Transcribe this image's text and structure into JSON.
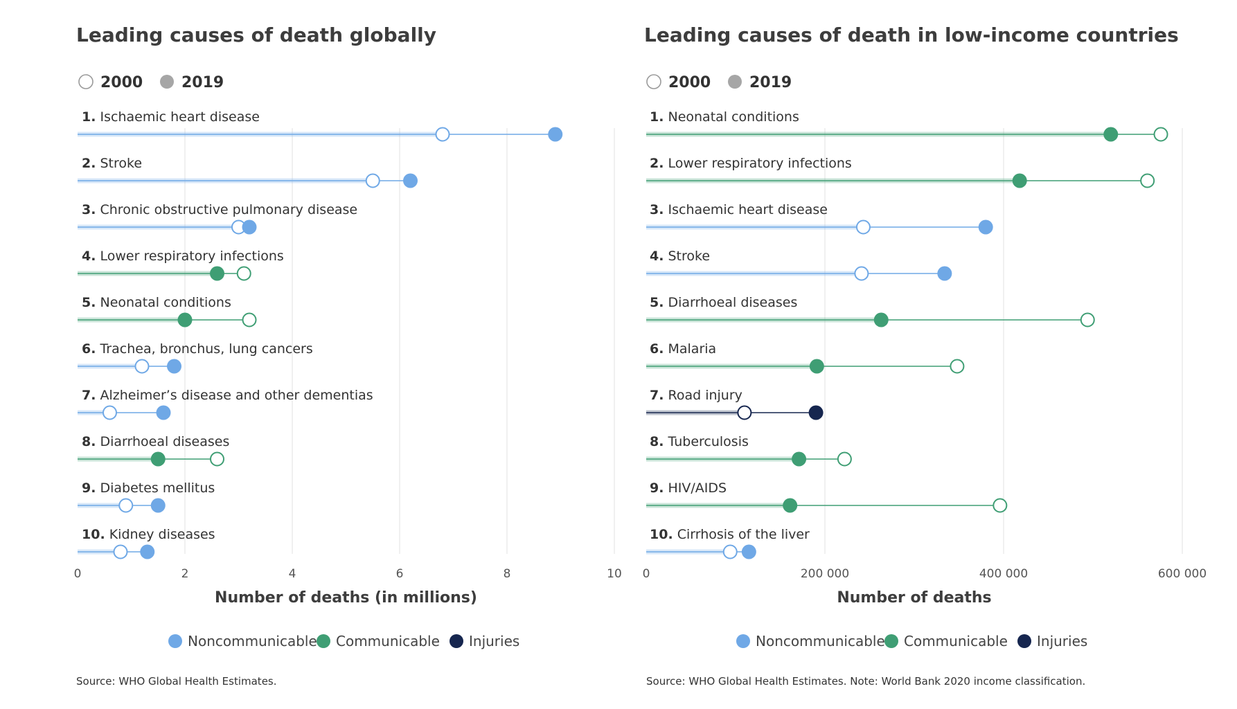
{
  "colors": {
    "noncommunicable": "#6fa8e6",
    "communicable": "#3f9e74",
    "injuries": "#16264f",
    "gridline": "#e2e2e2",
    "year_2000_fill": "#ffffff",
    "year_2019_legend": "#a6a6a6"
  },
  "legend_years": [
    "2000",
    "2019"
  ],
  "type_legend": [
    {
      "type": "noncommunicable",
      "label": "Noncommunicable"
    },
    {
      "type": "communicable",
      "label": "Communicable"
    },
    {
      "type": "injuries",
      "label": "Injuries"
    }
  ],
  "chart_data": [
    {
      "type": "dumbbell",
      "title": "Leading causes of death globally",
      "xlabel": "Number of deaths (in millions)",
      "xlim": [
        0,
        10
      ],
      "ticks": [
        0,
        2,
        4,
        6,
        8,
        10
      ],
      "tick_labels": [
        "0",
        "2",
        "4",
        "6",
        "8",
        "10"
      ],
      "source": "Source: WHO Global Health Estimates.",
      "categories": [
        {
          "rank": "1.",
          "name": "Ischaemic heart disease",
          "group": "noncommunicable",
          "v2000": 6.8,
          "v2019": 8.9
        },
        {
          "rank": "2.",
          "name": "Stroke",
          "group": "noncommunicable",
          "v2000": 5.5,
          "v2019": 6.2
        },
        {
          "rank": "3.",
          "name": "Chronic obstructive pulmonary disease",
          "group": "noncommunicable",
          "v2000": 3.0,
          "v2019": 3.2
        },
        {
          "rank": "4.",
          "name": "Lower respiratory infections",
          "group": "communicable",
          "v2000": 3.1,
          "v2019": 2.6
        },
        {
          "rank": "5.",
          "name": "Neonatal conditions",
          "group": "communicable",
          "v2000": 3.2,
          "v2019": 2.0
        },
        {
          "rank": "6.",
          "name": "Trachea, bronchus, lung cancers",
          "group": "noncommunicable",
          "v2000": 1.2,
          "v2019": 1.8
        },
        {
          "rank": "7.",
          "name": "Alzheimer’s disease and other dementias",
          "group": "noncommunicable",
          "v2000": 0.6,
          "v2019": 1.6
        },
        {
          "rank": "8.",
          "name": "Diarrhoeal diseases",
          "group": "communicable",
          "v2000": 2.6,
          "v2019": 1.5
        },
        {
          "rank": "9.",
          "name": "Diabetes mellitus",
          "group": "noncommunicable",
          "v2000": 0.9,
          "v2019": 1.5
        },
        {
          "rank": "10.",
          "name": "Kidney diseases",
          "group": "noncommunicable",
          "v2000": 0.8,
          "v2019": 1.3
        }
      ]
    },
    {
      "type": "dumbbell",
      "title": "Leading causes of death in low-income countries",
      "xlabel": "Number of deaths",
      "xlim": [
        0,
        600000
      ],
      "ticks": [
        0,
        200000,
        400000,
        600000
      ],
      "tick_labels": [
        "0",
        "200 000",
        "400 000",
        "600 000"
      ],
      "source": "Source: WHO Global Health Estimates. Note: World Bank 2020 income classification.",
      "categories": [
        {
          "rank": "1.",
          "name": "Neonatal conditions",
          "group": "communicable",
          "v2000": 576000,
          "v2019": 520000
        },
        {
          "rank": "2.",
          "name": "Lower respiratory infections",
          "group": "communicable",
          "v2000": 561000,
          "v2019": 418000
        },
        {
          "rank": "3.",
          "name": "Ischaemic heart disease",
          "group": "noncommunicable",
          "v2000": 243000,
          "v2019": 380000
        },
        {
          "rank": "4.",
          "name": "Stroke",
          "group": "noncommunicable",
          "v2000": 241000,
          "v2019": 334000
        },
        {
          "rank": "5.",
          "name": "Diarrhoeal diseases",
          "group": "communicable",
          "v2000": 494000,
          "v2019": 263000
        },
        {
          "rank": "6.",
          "name": "Malaria",
          "group": "communicable",
          "v2000": 348000,
          "v2019": 191000
        },
        {
          "rank": "7.",
          "name": "Road injury",
          "group": "injuries",
          "v2000": 110000,
          "v2019": 190000
        },
        {
          "rank": "8.",
          "name": "Tuberculosis",
          "group": "communicable",
          "v2000": 222000,
          "v2019": 171000
        },
        {
          "rank": "9.",
          "name": "HIV/AIDS",
          "group": "communicable",
          "v2000": 396000,
          "v2019": 161000
        },
        {
          "rank": "10.",
          "name": "Cirrhosis of the liver",
          "group": "noncommunicable",
          "v2000": 94000,
          "v2019": 115000
        }
      ]
    }
  ]
}
